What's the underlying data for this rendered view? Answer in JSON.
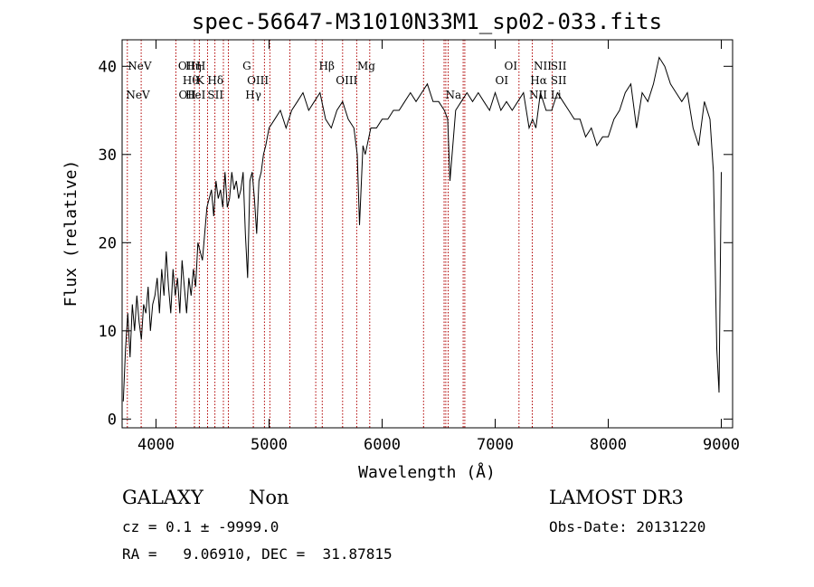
{
  "chart_data": {
    "type": "line",
    "title": "spec-56647-M31010N33M1_sp02-033.fits",
    "xlabel": "Wavelength (Å)",
    "ylabel": "Flux (relative)",
    "xlim": [
      3700,
      9100
    ],
    "ylim": [
      -1,
      43
    ],
    "xticks": [
      4000,
      5000,
      6000,
      7000,
      8000,
      9000
    ],
    "yticks": [
      0,
      10,
      20,
      30,
      40
    ],
    "series": [
      {
        "x": [
          3710,
          3730,
          3750,
          3770,
          3790,
          3810,
          3830,
          3850,
          3870,
          3890,
          3910,
          3930,
          3950,
          3970,
          3990,
          4010,
          4030,
          4050,
          4070,
          4090,
          4110,
          4130,
          4150,
          4170,
          4190,
          4210,
          4230,
          4250,
          4270,
          4290,
          4310,
          4330,
          4350,
          4370,
          4390,
          4410,
          4430,
          4450,
          4470,
          4490,
          4510,
          4530,
          4550,
          4570,
          4590,
          4610,
          4630,
          4650,
          4670,
          4690,
          4710,
          4730,
          4750,
          4770,
          4790,
          4810,
          4830,
          4850,
          4870,
          4890,
          4910,
          4930,
          4950,
          4970,
          5000,
          5050,
          5100,
          5150,
          5200,
          5250,
          5300,
          5350,
          5400,
          5450,
          5500,
          5550,
          5600,
          5650,
          5700,
          5750,
          5780,
          5800,
          5830,
          5850,
          5900,
          5950,
          6000,
          6050,
          6100,
          6150,
          6200,
          6250,
          6300,
          6350,
          6400,
          6450,
          6500,
          6550,
          6580,
          6600,
          6650,
          6700,
          6750,
          6800,
          6850,
          6900,
          6950,
          7000,
          7050,
          7100,
          7150,
          7200,
          7250,
          7300,
          7330,
          7360,
          7400,
          7450,
          7500,
          7550,
          7600,
          7650,
          7700,
          7750,
          7800,
          7850,
          7900,
          7950,
          8000,
          8050,
          8100,
          8150,
          8200,
          8250,
          8300,
          8350,
          8400,
          8450,
          8500,
          8550,
          8600,
          8650,
          8700,
          8750,
          8800,
          8850,
          8900,
          8930,
          8960,
          8980,
          9000
        ],
        "y": [
          2,
          8,
          12,
          7,
          13,
          10,
          14,
          11,
          9,
          13,
          12,
          15,
          10,
          13,
          14,
          16,
          12,
          17,
          14,
          19,
          15,
          12,
          17,
          14,
          16,
          12,
          18,
          15,
          12,
          16,
          14,
          17,
          15,
          20,
          19,
          18,
          21,
          24,
          25,
          26,
          23,
          27,
          25,
          26,
          24,
          28,
          24,
          25,
          28,
          26,
          27,
          25,
          26,
          28,
          21,
          16,
          27,
          28,
          25,
          21,
          27,
          28,
          30,
          31,
          33,
          34,
          35,
          33,
          35,
          36,
          37,
          35,
          36,
          37,
          34,
          33,
          35,
          36,
          34,
          33,
          30,
          22,
          31,
          30,
          33,
          33,
          34,
          34,
          35,
          35,
          36,
          37,
          36,
          37,
          38,
          36,
          36,
          35,
          34,
          27,
          35,
          36,
          37,
          36,
          37,
          36,
          35,
          37,
          35,
          36,
          35,
          36,
          37,
          33,
          34,
          33,
          37,
          35,
          35,
          37,
          36,
          35,
          34,
          34,
          32,
          33,
          31,
          32,
          32,
          34,
          35,
          37,
          38,
          33,
          37,
          36,
          38,
          41,
          40,
          38,
          37,
          36,
          37,
          33,
          31,
          36,
          34,
          28,
          8,
          3,
          28
        ]
      }
    ],
    "lines_top_row1": [
      "NeV",
      "OII",
      "Hη",
      "H",
      "G",
      "Hβ",
      "Mg",
      "OI",
      "NII",
      "SII"
    ],
    "lines_top_row2": [
      "Hθ",
      "K",
      "Hδ",
      "OIII",
      "OIII",
      "OI",
      "Hα",
      "SII"
    ],
    "lines_top_row3": [
      "NeV",
      "OII",
      "HeI",
      "SII",
      "Hγ",
      "Na",
      "NII",
      "Li"
    ],
    "line_positions": [
      3746,
      3869,
      4176,
      4340,
      4383,
      4456,
      4521,
      4596,
      4640,
      4861,
      4959,
      5007,
      5184,
      5413,
      5470,
      5650,
      5775,
      5890,
      6366,
      6548,
      6563,
      6584,
      6717,
      6731,
      7210,
      7328,
      7505
    ]
  },
  "info": {
    "class": "GALAXY",
    "subclass": "Non",
    "survey": "LAMOST DR3",
    "cz": "cz = 0.1 ± -9999.0",
    "obs_date": "Obs-Date: 20131220",
    "radec": "RA =   9.06910, DEC =  31.87815"
  }
}
